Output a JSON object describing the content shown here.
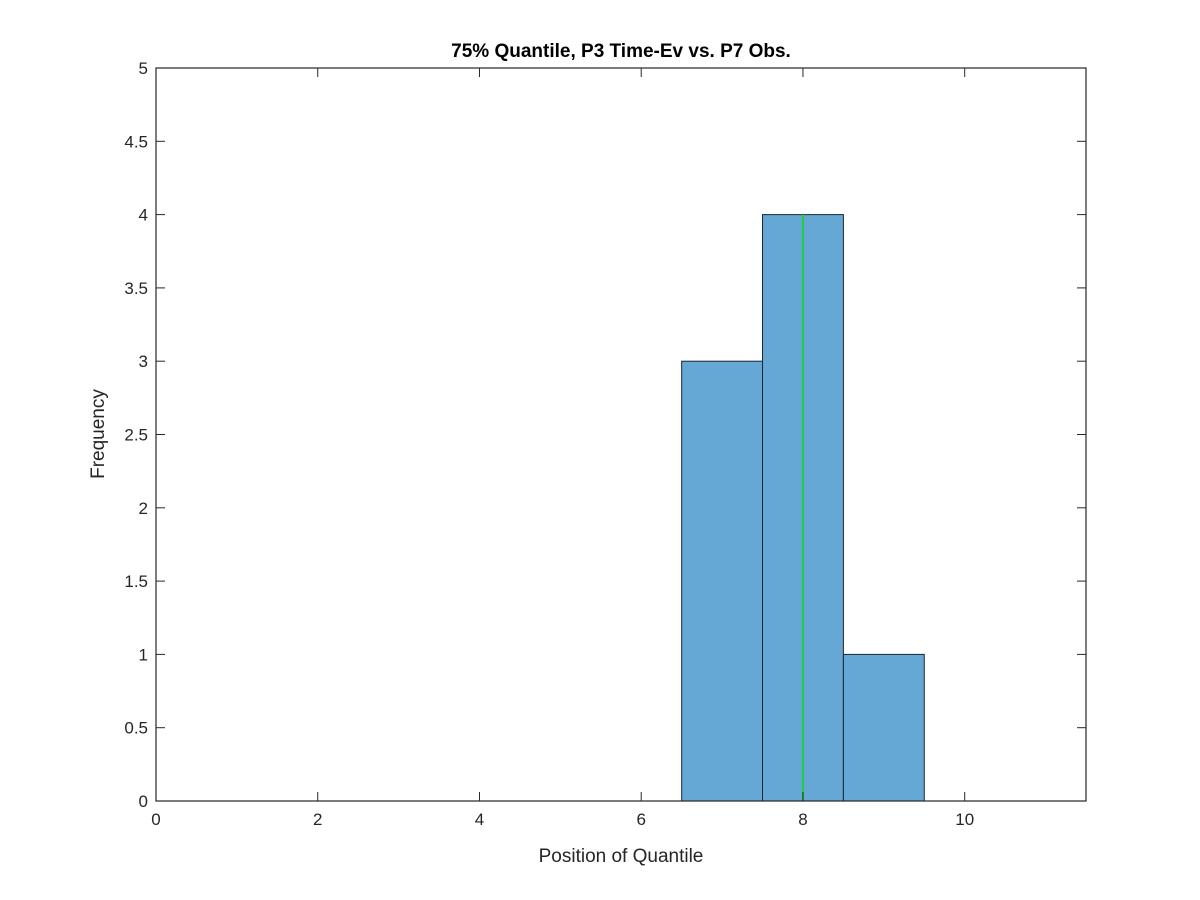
{
  "chart_data": {
    "type": "bar",
    "title": "75% Quantile, P3 Time-Ev vs. P7 Obs.",
    "xlabel": "Position of Quantile",
    "ylabel": "Frequency",
    "xlim": [
      0,
      11.5
    ],
    "ylim": [
      0,
      5
    ],
    "xticks": [
      0,
      2,
      4,
      6,
      8,
      10
    ],
    "xtick_labels": [
      "0",
      "2",
      "4",
      "6",
      "8",
      "10"
    ],
    "yticks": [
      0,
      0.5,
      1,
      1.5,
      2,
      2.5,
      3,
      3.5,
      4,
      4.5,
      5
    ],
    "ytick_labels": [
      "0",
      "0.5",
      "1",
      "1.5",
      "2",
      "2.5",
      "3",
      "3.5",
      "4",
      "4.5",
      "5"
    ],
    "bins": [
      {
        "x_start": 6.5,
        "x_end": 7.5,
        "value": 3
      },
      {
        "x_start": 7.5,
        "x_end": 8.5,
        "value": 4
      },
      {
        "x_start": 8.5,
        "x_end": 9.5,
        "value": 1
      }
    ],
    "reference_line": {
      "x": 8,
      "y_range": [
        0,
        4
      ]
    },
    "grid": false,
    "colors": {
      "bar_fill": "#65a8d6",
      "bar_edge": "#1b2733",
      "reference_line": "#1fd13d"
    }
  }
}
